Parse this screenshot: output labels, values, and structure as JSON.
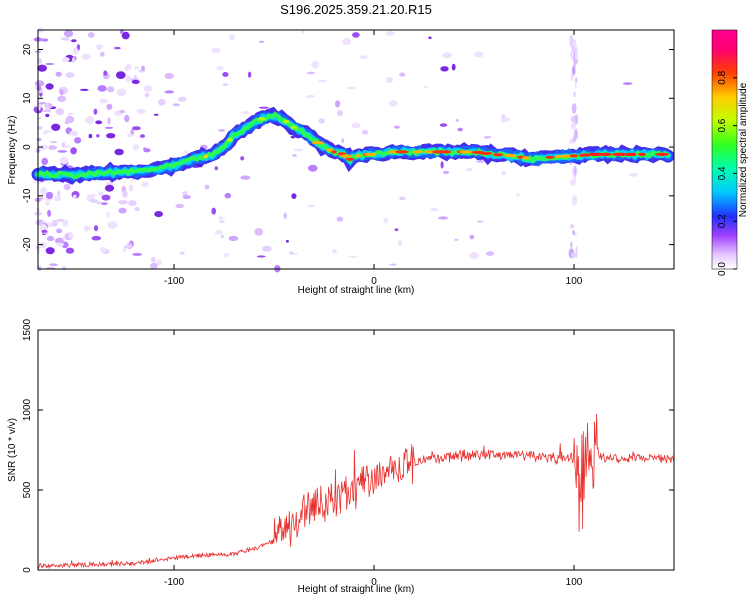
{
  "title": "S196.2025.359.21.20.R15",
  "chart_data": [
    {
      "type": "heatmap",
      "name": "spectrogram",
      "xlabel": "Height of straight line (km)",
      "ylabel": "Frequency (Hz)",
      "xlim": [
        -168,
        150
      ],
      "ylim": [
        -25,
        24
      ],
      "xticks": [
        -100,
        0,
        100
      ],
      "yticks": [
        -20,
        -10,
        0,
        10,
        20
      ],
      "ridge": {
        "x": [
          -168,
          -150,
          -130,
          -120,
          -110,
          -100,
          -90,
          -80,
          -75,
          -70,
          -65,
          -60,
          -55,
          -50,
          -45,
          -40,
          -35,
          -30,
          -25,
          -20,
          -15,
          -12,
          -10,
          -5,
          0,
          10,
          20,
          30,
          40,
          50,
          60,
          70,
          80,
          90,
          100,
          110,
          120,
          130,
          140,
          148
        ],
        "y": [
          -5.5,
          -5.8,
          -5.2,
          -5,
          -4.5,
          -3.8,
          -2.5,
          -1.5,
          0,
          2.5,
          3.5,
          5,
          6,
          6.5,
          5.5,
          4,
          3,
          1.5,
          0,
          -1,
          -1.5,
          -2.5,
          -2,
          -1.5,
          -1.5,
          -1,
          -1,
          -1,
          -1,
          -1,
          -1.5,
          -1.8,
          -2.5,
          -2,
          -1.8,
          -1.5,
          -1.5,
          -1.5,
          -1.5,
          -1.5
        ]
      },
      "colorbar": {
        "label": "Normalized spectral amplitude",
        "ticks": [
          "0.0",
          "0.2",
          "0.4",
          "0.6",
          "0.8"
        ],
        "range": [
          0,
          1
        ]
      }
    },
    {
      "type": "line",
      "name": "snr",
      "xlabel": "Height of straight line (km)",
      "ylabel": "SNR (10 * v/v)",
      "xlim": [
        -168,
        150
      ],
      "ylim": [
        0,
        1500
      ],
      "xticks": [
        -100,
        0,
        100
      ],
      "yticks": [
        0,
        500,
        1000,
        1500
      ],
      "color": "#e8312e",
      "envelope": {
        "x": [
          -168,
          -120,
          -90,
          -70,
          -60,
          -50,
          -45,
          -40,
          -35,
          -30,
          -25,
          -20,
          -15,
          -10,
          -5,
          0,
          5,
          10,
          15,
          20,
          25,
          30,
          40,
          50,
          60,
          70,
          80,
          90,
          100,
          103,
          106,
          108,
          110,
          115,
          130,
          150
        ],
        "y": [
          25,
          40,
          90,
          100,
          130,
          180,
          240,
          300,
          380,
          390,
          410,
          430,
          460,
          490,
          530,
          560,
          600,
          630,
          650,
          660,
          680,
          700,
          710,
          720,
          720,
          720,
          710,
          700,
          700,
          500,
          650,
          800,
          720,
          700,
          700,
          700
        ]
      }
    }
  ]
}
